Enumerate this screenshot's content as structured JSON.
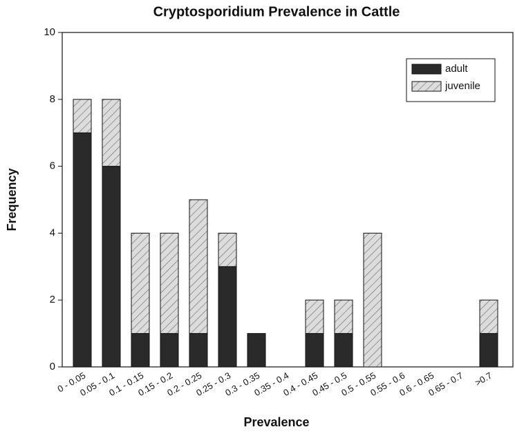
{
  "chart_data": {
    "type": "stacked_bar",
    "title": "Cryptosporidium Prevalence in Cattle",
    "xlabel": "Prevalence",
    "ylabel": "Frequency",
    "categories": [
      "0 - 0.05",
      "0.05 - 0.1",
      "0.1 - 0.15",
      "0.15 - 0.2",
      "0.2 - 0.25",
      "0.25 - 0.3",
      "0.3 - 0.35",
      "0.35 - 0.4",
      "0.4 - 0.45",
      "0.45 - 0.5",
      "0.5 - 0.55",
      "0.55 - 0.6",
      "0.6 - 0.65",
      "0.65 - 0.7",
      ">0.7"
    ],
    "series": [
      {
        "name": "adult",
        "color": "#2a2a2a",
        "values": [
          7,
          6,
          1,
          1,
          1,
          3,
          1,
          0,
          1,
          1,
          0,
          0,
          0,
          0,
          1
        ]
      },
      {
        "name": "juvenile",
        "color": "#dcdcdc",
        "pattern": "hatch",
        "values": [
          1,
          2,
          3,
          3,
          4,
          1,
          0,
          0,
          1,
          1,
          4,
          0,
          0,
          0,
          1
        ]
      }
    ],
    "ylim": [
      0,
      10
    ],
    "yticks": [
      0,
      2,
      4,
      6,
      8,
      10
    ],
    "legend": "upper right"
  }
}
